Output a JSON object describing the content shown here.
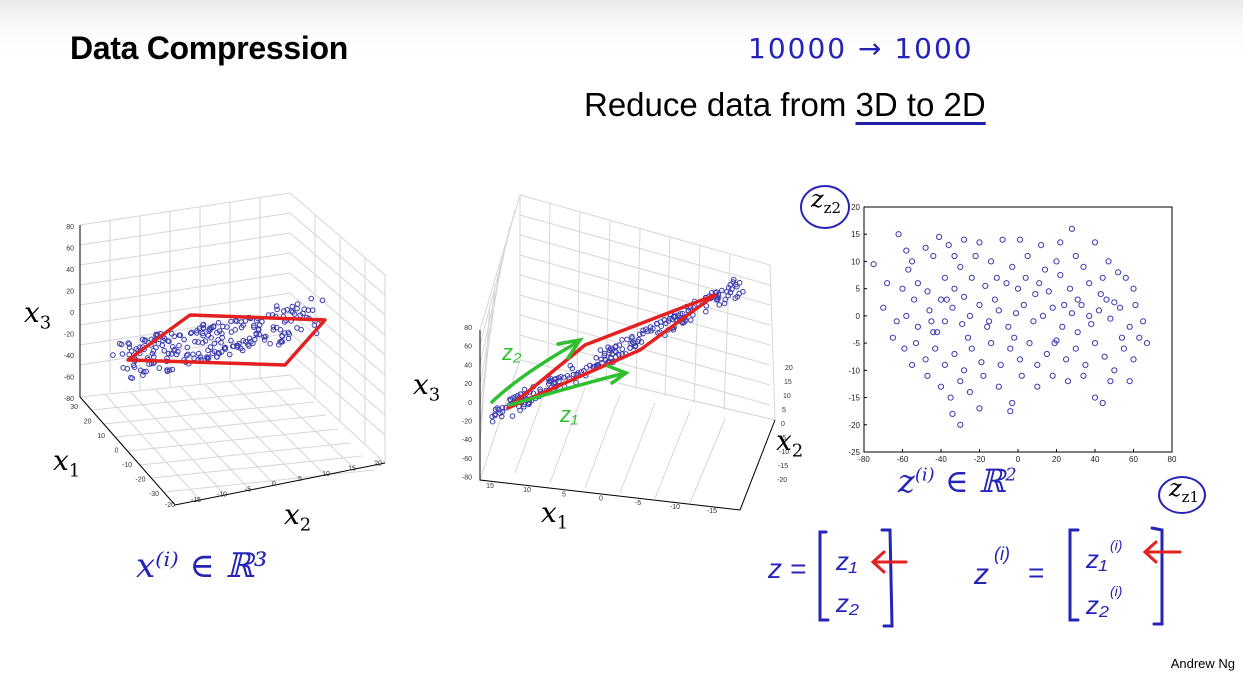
{
  "slide": {
    "title": "Data Compression",
    "subtitle_pre": "Reduce data from ",
    "subtitle_ul": "3D to 2D",
    "handwritten_top": "10000 → 1000",
    "author": "Andrew Ng"
  },
  "plot3d_left": {
    "zlabel_sym": "x",
    "zlabel_sub": "3",
    "xlabel_sym": "x",
    "xlabel_sub": "1",
    "ylabel_sym": "x",
    "ylabel_sub": "2",
    "z_ticks": [
      "80",
      "60",
      "40",
      "20",
      "0",
      "-20",
      "-40",
      "-60",
      "-80"
    ],
    "x1_ticks": [
      "30",
      "20",
      "10",
      "0",
      "-10",
      "-20",
      "-30"
    ],
    "x2_ticks": [
      "-20",
      "-15",
      "-10",
      "-5",
      "0",
      "5",
      "10",
      "15",
      "20"
    ],
    "annotation": "x⁽ⁱ⁾ ∈ ℝ³"
  },
  "plot3d_middle": {
    "zlabel_sym": "x",
    "zlabel_sub": "3",
    "xlabel_sym": "x",
    "xlabel_sub": "1",
    "ylabel_sym": "x",
    "ylabel_sub": "2",
    "z_ticks": [
      "80",
      "60",
      "40",
      "20",
      "0",
      "-20",
      "-40",
      "-60",
      "-80"
    ],
    "x1_ticks": [
      "15",
      "10",
      "5",
      "0",
      "-5",
      "-10",
      "-15"
    ],
    "x2_ticks": [
      "20",
      "15",
      "10",
      "5",
      "0",
      "-5",
      "-10",
      "-15",
      "-20"
    ],
    "arrow_labels": [
      "z₂",
      "z₁"
    ]
  },
  "chart_data": {
    "type": "scatter",
    "title": "",
    "xlabel": "z1",
    "ylabel": "z2",
    "xlim": [
      -80,
      80
    ],
    "ylim": [
      -25,
      20
    ],
    "x_ticks": [
      -80,
      -60,
      -40,
      -20,
      0,
      20,
      40,
      60,
      80
    ],
    "y_ticks": [
      -25,
      -20,
      -15,
      -10,
      -5,
      0,
      5,
      10,
      15,
      20
    ],
    "y_tick_labels": [
      "-25",
      "-20",
      "-15",
      "-10",
      "-5",
      "0",
      "5",
      "10",
      "15",
      "20"
    ],
    "x_tick_labels": [
      "-80",
      "-60",
      "-40",
      "-20",
      "0",
      "20",
      "40",
      "60",
      "80"
    ],
    "marker": "o",
    "marker_color": "#3333aa",
    "grid": false,
    "points": [
      [
        -75,
        9.5
      ],
      [
        -62,
        15
      ],
      [
        -57,
        8.5
      ],
      [
        -48,
        12.5
      ],
      [
        -41,
        14.5
      ],
      [
        -36,
        13
      ],
      [
        -33,
        11
      ],
      [
        -28,
        14
      ],
      [
        -20,
        13.5
      ],
      [
        -8,
        14
      ],
      [
        1,
        14
      ],
      [
        12,
        13
      ],
      [
        22,
        13.5
      ],
      [
        28,
        16
      ],
      [
        40,
        13.5
      ],
      [
        47,
        10
      ],
      [
        -68,
        6
      ],
      [
        -60,
        5
      ],
      [
        -54,
        3
      ],
      [
        -52,
        6
      ],
      [
        -47,
        4.5
      ],
      [
        -40,
        3
      ],
      [
        -33,
        5
      ],
      [
        -28,
        3.5
      ],
      [
        -24,
        7
      ],
      [
        -17,
        5.5
      ],
      [
        -11,
        7
      ],
      [
        -6,
        6
      ],
      [
        0,
        5
      ],
      [
        4,
        7
      ],
      [
        11,
        6
      ],
      [
        16,
        4.5
      ],
      [
        22,
        7.5
      ],
      [
        27,
        5
      ],
      [
        31,
        3
      ],
      [
        37,
        6
      ],
      [
        43,
        4
      ],
      [
        50,
        2.5
      ],
      [
        56,
        7
      ],
      [
        61,
        2
      ],
      [
        -70,
        1.5
      ],
      [
        -63,
        -1
      ],
      [
        -58,
        0
      ],
      [
        -52,
        -2
      ],
      [
        -46,
        1
      ],
      [
        -42,
        -3
      ],
      [
        -38,
        -1
      ],
      [
        -34,
        1.5
      ],
      [
        -29,
        -1.5
      ],
      [
        -25,
        0
      ],
      [
        -20,
        2
      ],
      [
        -15,
        -1
      ],
      [
        -10,
        1
      ],
      [
        -5,
        -2
      ],
      [
        -1,
        0.5
      ],
      [
        3,
        2
      ],
      [
        8,
        -1
      ],
      [
        13,
        0
      ],
      [
        18,
        1.5
      ],
      [
        23,
        -2
      ],
      [
        28,
        0.5
      ],
      [
        33,
        2
      ],
      [
        38,
        -1.5
      ],
      [
        42,
        1
      ],
      [
        48,
        -0.5
      ],
      [
        53,
        1.5
      ],
      [
        58,
        -2
      ],
      [
        65,
        -1
      ],
      [
        -65,
        -4
      ],
      [
        -59,
        -6
      ],
      [
        -53,
        -5
      ],
      [
        -48,
        -8
      ],
      [
        -43,
        -6
      ],
      [
        -38,
        -9
      ],
      [
        -33,
        -7
      ],
      [
        -28,
        -10
      ],
      [
        -24,
        -6
      ],
      [
        -19,
        -8.5
      ],
      [
        -14,
        -5
      ],
      [
        -9,
        -9
      ],
      [
        -4,
        -6
      ],
      [
        1,
        -8
      ],
      [
        6,
        -5
      ],
      [
        10,
        -9
      ],
      [
        15,
        -7
      ],
      [
        20,
        -4.5
      ],
      [
        25,
        -8
      ],
      [
        30,
        -6
      ],
      [
        35,
        -9
      ],
      [
        40,
        -5
      ],
      [
        45,
        -7.5
      ],
      [
        50,
        -10
      ],
      [
        55,
        -6
      ],
      [
        60,
        -8
      ],
      [
        67,
        -5
      ],
      [
        -47,
        -11
      ],
      [
        -40,
        -13
      ],
      [
        -35,
        -15
      ],
      [
        -30,
        -12
      ],
      [
        -25,
        -14
      ],
      [
        -18,
        -11
      ],
      [
        -10,
        -13
      ],
      [
        -3,
        -16
      ],
      [
        2,
        -11
      ],
      [
        10,
        -13
      ],
      [
        18,
        -11
      ],
      [
        26,
        -12
      ],
      [
        34,
        -11
      ],
      [
        40,
        -15
      ],
      [
        48,
        -12
      ],
      [
        58,
        -12
      ],
      [
        -34,
        -18
      ],
      [
        -30,
        -20
      ],
      [
        -20,
        -17
      ],
      [
        -4,
        -17.5
      ],
      [
        44,
        -16
      ],
      [
        -55,
        10
      ],
      [
        -44,
        11
      ],
      [
        -30,
        9
      ],
      [
        -14,
        10
      ],
      [
        5,
        11
      ],
      [
        20,
        10
      ],
      [
        34,
        9
      ],
      [
        52,
        8
      ],
      [
        -58,
        12
      ],
      [
        -38,
        7
      ],
      [
        -22,
        11
      ],
      [
        -3,
        9
      ],
      [
        14,
        8.5
      ],
      [
        30,
        11
      ],
      [
        44,
        7
      ],
      [
        60,
        5
      ],
      [
        -45,
        -1
      ],
      [
        -37,
        3
      ],
      [
        -26,
        -4
      ],
      [
        -12,
        3
      ],
      [
        -2,
        -4
      ],
      [
        9,
        4
      ],
      [
        19,
        -5
      ],
      [
        31,
        -3
      ],
      [
        46,
        3
      ],
      [
        54,
        -4
      ],
      [
        -55,
        -9
      ],
      [
        -44,
        -3
      ],
      [
        -16,
        -2
      ],
      [
        24,
        2
      ],
      [
        37,
        0
      ],
      [
        63,
        -4
      ]
    ]
  }
}
